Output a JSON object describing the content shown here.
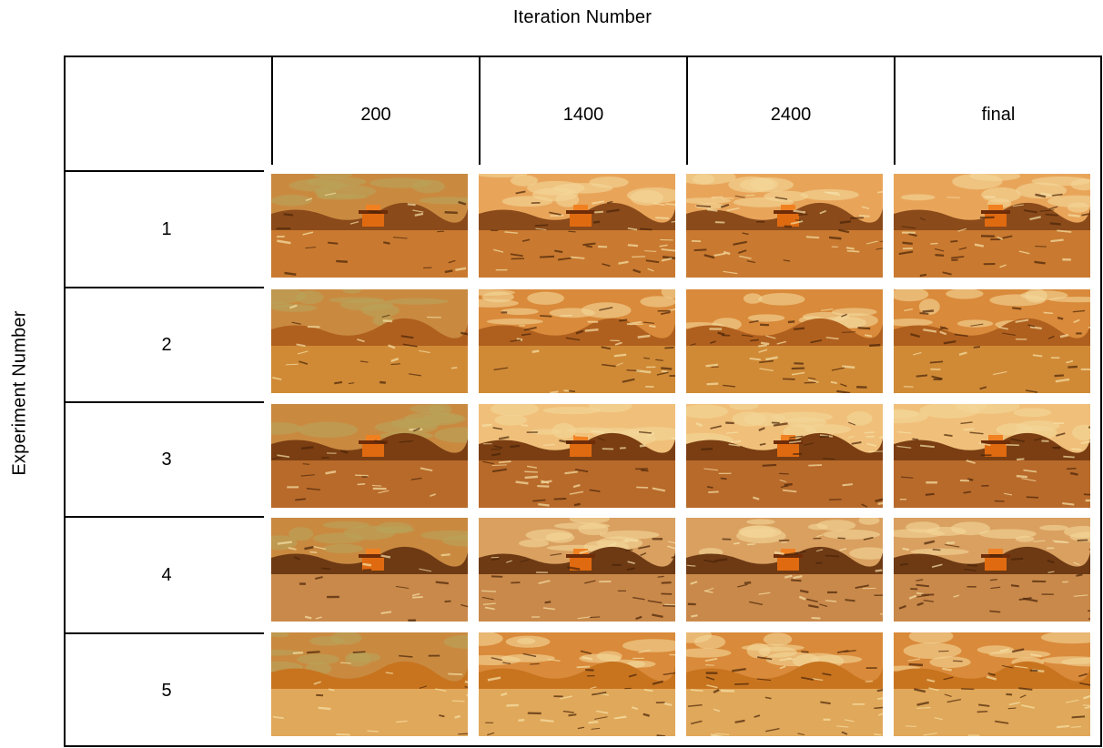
{
  "column_axis_title": "Iteration Number",
  "row_axis_title": "Experiment Number",
  "columns": [
    "200",
    "1400",
    "2400",
    "final"
  ],
  "rows": [
    "1",
    "2",
    "3",
    "4",
    "5"
  ]
}
